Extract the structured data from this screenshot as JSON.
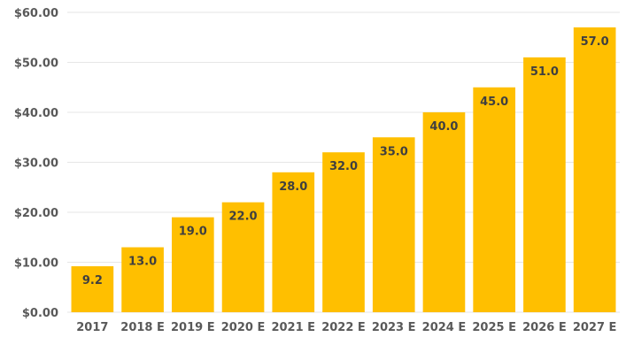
{
  "chart_data": {
    "type": "bar",
    "title": "",
    "xlabel": "",
    "ylabel": "",
    "categories": [
      "2017",
      "2018 E",
      "2019 E",
      "2020 E",
      "2021 E",
      "2022 E",
      "2023 E",
      "2024 E",
      "2025 E",
      "2026 E",
      "2027 E"
    ],
    "values": [
      9.2,
      13.0,
      19.0,
      22.0,
      28.0,
      32.0,
      35.0,
      40.0,
      45.0,
      51.0,
      57.0
    ],
    "data_labels": [
      "9.2",
      "13.0",
      "19.0",
      "22.0",
      "28.0",
      "32.0",
      "35.0",
      "40.0",
      "45.0",
      "51.0",
      "57.0"
    ],
    "ylim": [
      0,
      60
    ],
    "y_ticks": [
      0,
      10,
      20,
      30,
      40,
      50,
      60
    ],
    "y_tick_labels": [
      "$0.00",
      "$10.00",
      "$20.00",
      "$30.00",
      "$40.00",
      "$50.00",
      "$60.00"
    ],
    "grid": true,
    "legend": "none",
    "colors": {
      "bar": "#FFBF00",
      "grid": "#e6e6e6",
      "axis_text": "#595959",
      "label_text": "#3f3f3f"
    }
  }
}
